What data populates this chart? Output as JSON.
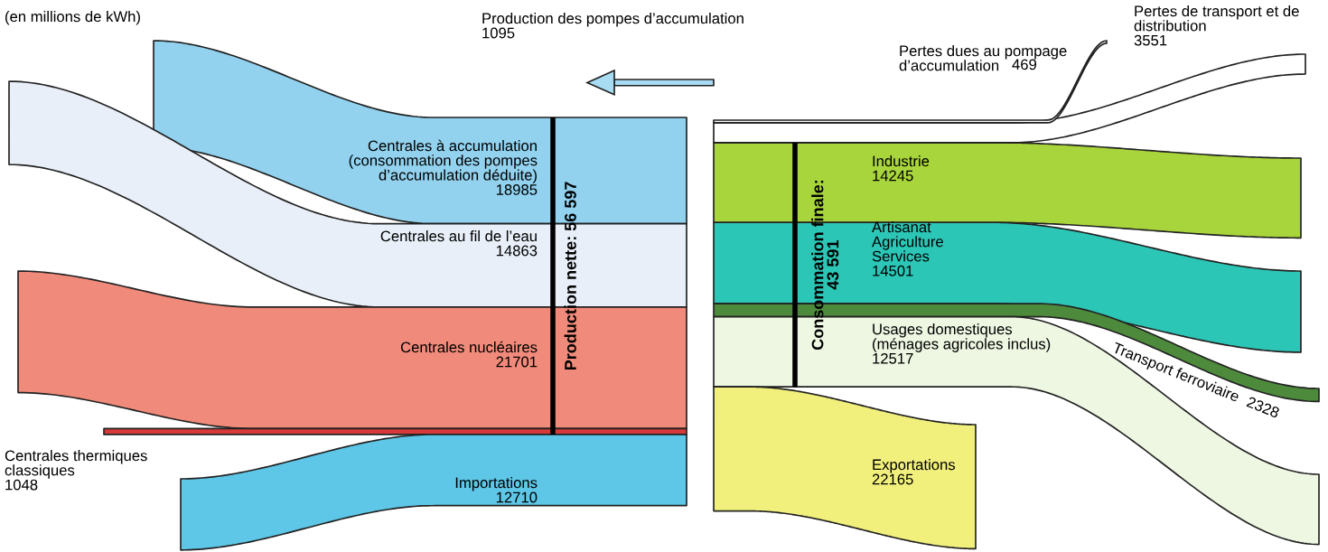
{
  "chart_data": {
    "type": "other",
    "title": "(en millions de kWh)",
    "categories": [
      "Centrales à accumulation\n(consommation des pompes\nd’accumulation déduite)",
      "Centrales au fil de l’eau",
      "Centrales nucléaires",
      "Centrales thermiques\nclassiques",
      "Importations",
      "Industrie",
      "Artisanat\nAgriculture\nServices",
      "Transport ferroviaire",
      "Usages domestiques\n(ménages agricoles inclus)",
      "Exportations",
      "Pertes de transport et de\ndistribution",
      "Pertes dues au pompage\nd’accumulation",
      "Production des pompes d’accumulation"
    ],
    "values": [
      18985,
      14863,
      21701,
      1048,
      12710,
      14245,
      14501,
      2328,
      12517,
      22165,
      3551,
      469,
      1095
    ],
    "colors": [
      "#92d2ef",
      "#e8eff8",
      "#f08a7a",
      "#d83a3a",
      "#5ec6e6",
      "#a9d53c",
      "#2cc6b6",
      "#4d8a3c",
      "#eef7e2",
      "#f2f07c",
      "#ffffff",
      "#ffffff",
      "#a8dcf2"
    ],
    "data_labels": true,
    "annotations": [
      "Production nette: 56 597",
      "Consommation finale:\n43 591"
    ]
  }
}
